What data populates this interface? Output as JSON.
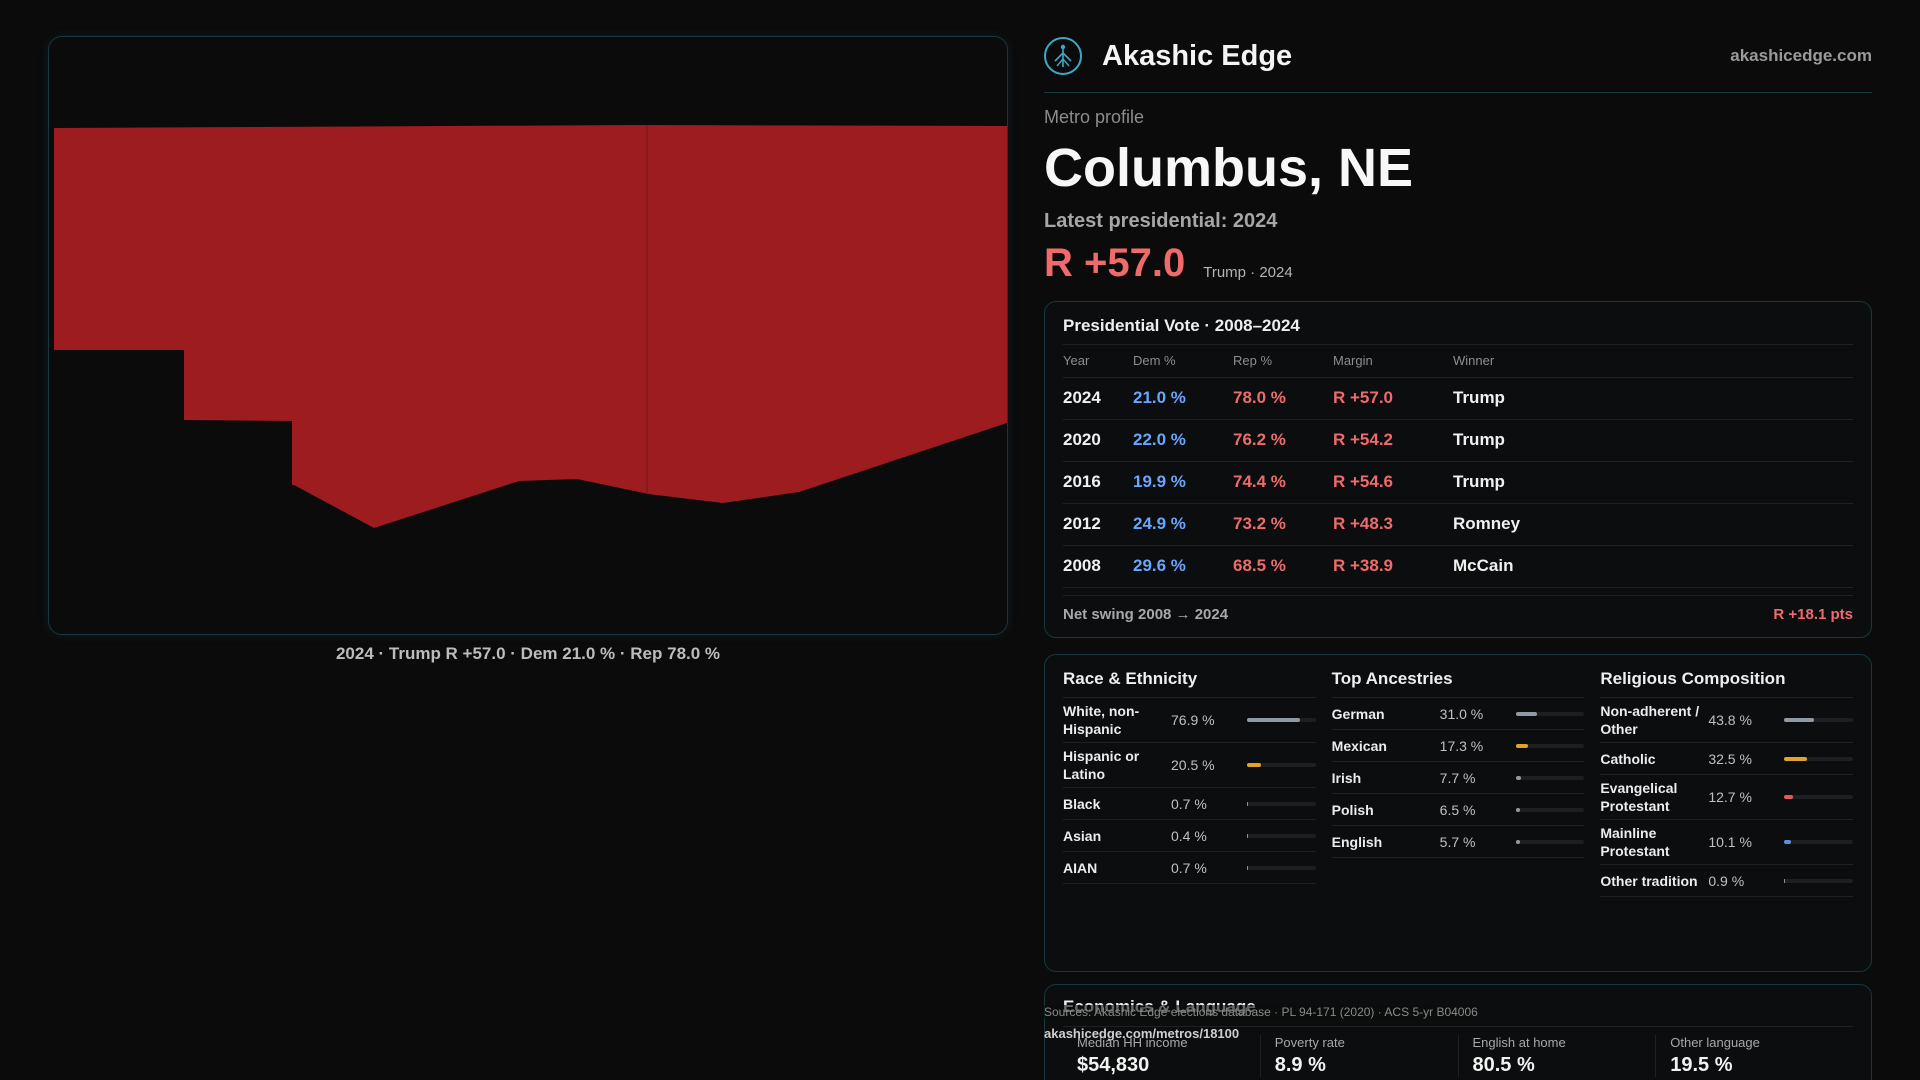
{
  "map": {
    "caption": "2024 · Trump R +57.0 · Dem 21.0 % · Rep 78.0 %",
    "fill_color": "#9c1c20"
  },
  "header": {
    "brand": "Akashic Edge",
    "site": "akashicedge.com",
    "logo_icon": "tree-icon"
  },
  "profile": {
    "kicker": "Metro profile",
    "name": "Columbus, NE",
    "latest_label": "Latest presidential: 2024",
    "margin": "R +57.0",
    "margin_sub": "Trump · 2024"
  },
  "vote": {
    "title": "Presidential Vote · 2008–2024",
    "headers": [
      "Year",
      "Dem %",
      "Rep %",
      "Margin",
      "Winner"
    ],
    "rows": [
      {
        "year": "2024",
        "dem": "21.0 %",
        "rep": "78.0 %",
        "margin": "R +57.0",
        "winner": "Trump"
      },
      {
        "year": "2020",
        "dem": "22.0 %",
        "rep": "76.2 %",
        "margin": "R +54.2",
        "winner": "Trump"
      },
      {
        "year": "2016",
        "dem": "19.9 %",
        "rep": "74.4 %",
        "margin": "R +54.6",
        "winner": "Trump"
      },
      {
        "year": "2012",
        "dem": "24.9 %",
        "rep": "73.2 %",
        "margin": "R +48.3",
        "winner": "Romney"
      },
      {
        "year": "2008",
        "dem": "29.6 %",
        "rep": "68.5 %",
        "margin": "R +38.9",
        "winner": "McCain"
      }
    ],
    "swing_label": "Net swing 2008 → 2024",
    "swing_value": "R +18.1 pts"
  },
  "race": {
    "title": "Race & Ethnicity",
    "rows": [
      {
        "name": "White, non-Hispanic",
        "value": "76.9 %",
        "pct": 76.9,
        "color": "#8f9aa6"
      },
      {
        "name": "Hispanic or Latino",
        "value": "20.5 %",
        "pct": 20.5,
        "color": "#e0a32c"
      },
      {
        "name": "Black",
        "value": "0.7 %",
        "pct": 0.7,
        "color": "#8f9aa6"
      },
      {
        "name": "Asian",
        "value": "0.4 %",
        "pct": 0.4,
        "color": "#8f9aa6"
      },
      {
        "name": "AIAN",
        "value": "0.7 %",
        "pct": 0.7,
        "color": "#8f9aa6"
      }
    ]
  },
  "ancestry": {
    "title": "Top Ancestries",
    "rows": [
      {
        "name": "German",
        "value": "31.0 %",
        "pct": 31.0,
        "color": "#8f9aa6"
      },
      {
        "name": "Mexican",
        "value": "17.3 %",
        "pct": 17.3,
        "color": "#e0a32c"
      },
      {
        "name": "Irish",
        "value": "7.7 %",
        "pct": 7.7,
        "color": "#8f9aa6"
      },
      {
        "name": "Polish",
        "value": "6.5 %",
        "pct": 6.5,
        "color": "#8f9aa6"
      },
      {
        "name": "English",
        "value": "5.7 %",
        "pct": 5.7,
        "color": "#8f9aa6"
      }
    ]
  },
  "religion": {
    "title": "Religious Composition",
    "rows": [
      {
        "name": "Non-adherent / Other",
        "value": "43.8 %",
        "pct": 43.8,
        "color": "#8f9aa6"
      },
      {
        "name": "Catholic",
        "value": "32.5 %",
        "pct": 32.5,
        "color": "#e0a32c"
      },
      {
        "name": "Evangelical Protestant",
        "value": "12.7 %",
        "pct": 12.7,
        "color": "#e05a5a"
      },
      {
        "name": "Mainline Protestant",
        "value": "10.1 %",
        "pct": 10.1,
        "color": "#5b8fe6"
      },
      {
        "name": "Other tradition",
        "value": "0.9 %",
        "pct": 0.9,
        "color": "#8f9aa6"
      }
    ]
  },
  "economics": {
    "title": "Economics & Language",
    "cells": [
      {
        "label": "Median HH income",
        "value": "$54,830"
      },
      {
        "label": "Poverty rate",
        "value": "8.9 %"
      },
      {
        "label": "English at home",
        "value": "80.5 %"
      },
      {
        "label": "Other language",
        "value": "19.5 %"
      }
    ]
  },
  "footer": {
    "sources": "Sources: Akashic Edge elections database · PL 94-171 (2020) · ACS 5-yr B04006",
    "url": "akashicedge.com/metros/18100"
  }
}
